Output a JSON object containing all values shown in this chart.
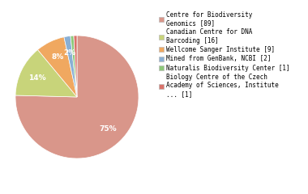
{
  "labels": [
    "Centre for Biodiversity\nGenomics [89]",
    "Canadian Centre for DNA\nBarcoding [16]",
    "Wellcome Sanger Institute [9]",
    "Mined from GenBank, NCBI [2]",
    "Naturalis Biodiversity Center [1]",
    "Biology Centre of the Czech\nAcademy of Sciences, Institute\n... [1]"
  ],
  "values": [
    89,
    16,
    9,
    2,
    1,
    1
  ],
  "colors": [
    "#d9968a",
    "#c8d47a",
    "#f0a860",
    "#89afd4",
    "#8dc87a",
    "#d9726a"
  ],
  "figsize": [
    3.8,
    2.4
  ],
  "dpi": 100,
  "background_color": "#ffffff",
  "font_size": 5.5,
  "pct_fontsize": 6.5
}
